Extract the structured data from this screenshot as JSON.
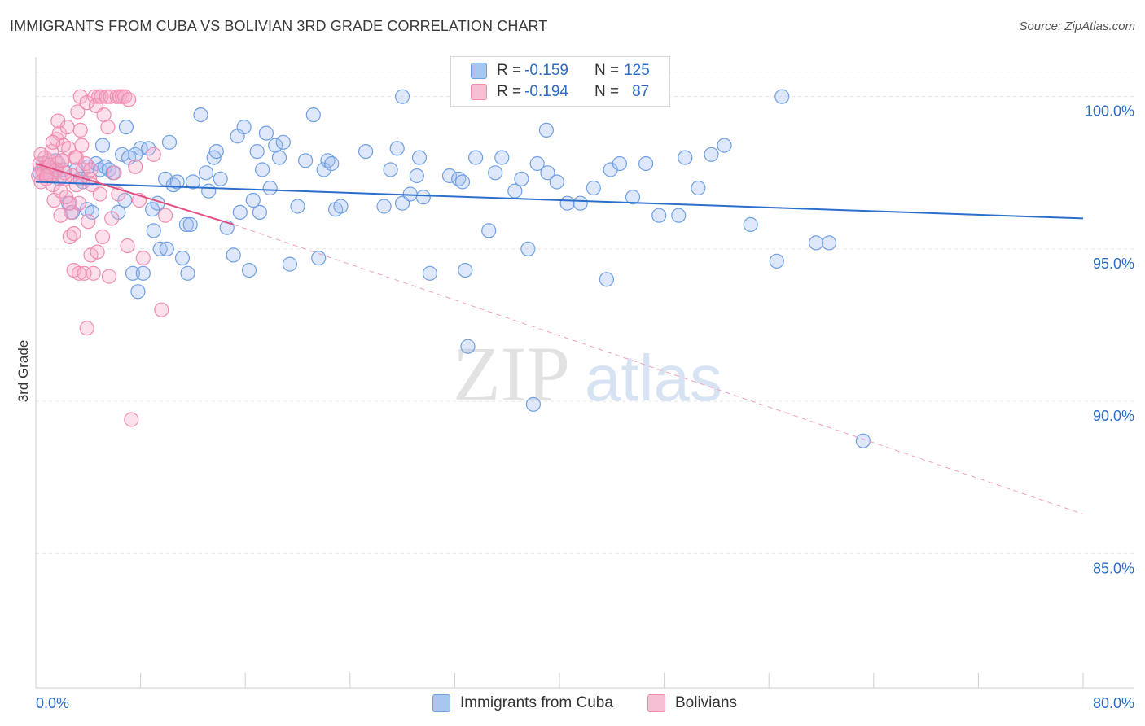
{
  "chart_data": {
    "type": "scatter",
    "title": "IMMIGRANTS FROM CUBA VS BOLIVIAN 3RD GRADE CORRELATION CHART",
    "source": "Source: ZipAtlas.com",
    "ylabel": "3rd Grade",
    "xlim": [
      0,
      80
    ],
    "ylim": [
      80.6,
      101.3
    ],
    "x_tick_labels": [
      "0.0%",
      "80.0%"
    ],
    "y_ticks": [
      85,
      90,
      95,
      100
    ],
    "y_tick_labels": [
      "85.0%",
      "90.0%",
      "95.0%",
      "100.0%"
    ],
    "watermark": {
      "zip": "ZIP",
      "atlas": "atlas"
    },
    "legend_stats": [
      {
        "r_label": "R = ",
        "r_value": "-0.159",
        "n_label": "N = ",
        "n_value": "125"
      },
      {
        "r_label": "R = ",
        "r_value": "-0.194",
        "n_label": "N = ",
        "n_value": "87"
      }
    ],
    "series": [
      {
        "name": "Immigrants from Cuba",
        "color": "#6f9fe3",
        "fill": "rgba(160,190,240,0.35)",
        "trend_color": "#2b6fcc",
        "trend": {
          "x1": 0,
          "y1": 97.2,
          "x2": 80,
          "y2": 96.0
        },
        "points": [
          [
            0.3,
            97.5
          ],
          [
            0.6,
            97.8
          ],
          [
            0.9,
            97.6
          ],
          [
            1.2,
            97.4
          ],
          [
            1.5,
            97.9
          ],
          [
            1.8,
            97.3
          ],
          [
            2.1,
            97.6
          ],
          [
            2.5,
            96.5
          ],
          [
            2.8,
            96.2
          ],
          [
            3.1,
            97.6
          ],
          [
            3.4,
            97.3
          ],
          [
            3.6,
            97.2
          ],
          [
            3.9,
            96.3
          ],
          [
            4.0,
            97.7
          ],
          [
            4.3,
            96.2
          ],
          [
            4.6,
            97.8
          ],
          [
            4.9,
            97.6
          ],
          [
            5.1,
            98.4
          ],
          [
            5.3,
            97.7
          ],
          [
            5.6,
            97.6
          ],
          [
            5.9,
            97.5
          ],
          [
            6.3,
            96.2
          ],
          [
            6.6,
            98.1
          ],
          [
            6.8,
            96.6
          ],
          [
            6.9,
            99.0
          ],
          [
            7.1,
            98.0
          ],
          [
            7.4,
            94.2
          ],
          [
            7.6,
            98.1
          ],
          [
            7.8,
            93.6
          ],
          [
            8.0,
            98.3
          ],
          [
            8.2,
            94.2
          ],
          [
            8.6,
            98.3
          ],
          [
            8.9,
            96.3
          ],
          [
            9.0,
            95.6
          ],
          [
            9.3,
            96.5
          ],
          [
            9.5,
            95.0
          ],
          [
            9.9,
            97.3
          ],
          [
            10.0,
            95.0
          ],
          [
            10.2,
            98.5
          ],
          [
            10.5,
            97.1
          ],
          [
            10.8,
            97.2
          ],
          [
            11.2,
            94.7
          ],
          [
            11.5,
            95.8
          ],
          [
            11.6,
            94.2
          ],
          [
            11.8,
            95.8
          ],
          [
            12.0,
            97.2
          ],
          [
            12.6,
            99.4
          ],
          [
            13.0,
            97.5
          ],
          [
            13.2,
            96.9
          ],
          [
            13.6,
            98.0
          ],
          [
            13.8,
            98.2
          ],
          [
            14.1,
            97.3
          ],
          [
            14.6,
            95.7
          ],
          [
            15.1,
            94.8
          ],
          [
            15.4,
            98.7
          ],
          [
            15.6,
            96.2
          ],
          [
            15.9,
            99.0
          ],
          [
            16.3,
            94.3
          ],
          [
            16.6,
            96.6
          ],
          [
            16.9,
            98.2
          ],
          [
            17.1,
            96.2
          ],
          [
            17.3,
            97.6
          ],
          [
            17.6,
            98.8
          ],
          [
            17.9,
            97.0
          ],
          [
            18.3,
            98.4
          ],
          [
            18.6,
            98.0
          ],
          [
            18.9,
            98.5
          ],
          [
            19.4,
            94.5
          ],
          [
            20.0,
            96.4
          ],
          [
            20.6,
            97.9
          ],
          [
            21.2,
            99.4
          ],
          [
            21.6,
            94.7
          ],
          [
            22.0,
            97.6
          ],
          [
            22.3,
            97.9
          ],
          [
            22.6,
            97.8
          ],
          [
            22.9,
            96.3
          ],
          [
            23.3,
            96.4
          ],
          [
            25.2,
            98.2
          ],
          [
            26.6,
            96.4
          ],
          [
            27.1,
            97.6
          ],
          [
            27.6,
            98.3
          ],
          [
            28.0,
            96.5
          ],
          [
            28.6,
            96.8
          ],
          [
            29.1,
            97.4
          ],
          [
            29.3,
            98.0
          ],
          [
            29.6,
            96.7
          ],
          [
            30.1,
            94.2
          ],
          [
            31.6,
            97.4
          ],
          [
            32.3,
            97.3
          ],
          [
            32.6,
            97.2
          ],
          [
            33.6,
            98.0
          ],
          [
            34.6,
            95.6
          ],
          [
            35.1,
            97.5
          ],
          [
            35.6,
            98.0
          ],
          [
            36.6,
            96.9
          ],
          [
            37.1,
            97.3
          ],
          [
            37.6,
            95.0
          ],
          [
            38.3,
            97.8
          ],
          [
            39.1,
            97.5
          ],
          [
            39.8,
            97.2
          ],
          [
            40.6,
            96.5
          ],
          [
            41.6,
            96.5
          ],
          [
            42.6,
            97.0
          ],
          [
            43.6,
            94.0
          ],
          [
            43.9,
            97.6
          ],
          [
            44.6,
            97.8
          ],
          [
            45.6,
            96.7
          ],
          [
            46.6,
            97.8
          ],
          [
            47.6,
            96.1
          ],
          [
            49.1,
            96.1
          ],
          [
            49.6,
            98.0
          ],
          [
            50.6,
            97.0
          ],
          [
            51.6,
            98.1
          ],
          [
            52.6,
            98.4
          ],
          [
            54.6,
            95.8
          ],
          [
            56.6,
            94.6
          ],
          [
            59.6,
            95.2
          ],
          [
            60.6,
            95.2
          ],
          [
            63.2,
            88.7
          ],
          [
            33.0,
            91.8
          ],
          [
            38.0,
            89.9
          ],
          [
            39.0,
            98.9
          ],
          [
            32.8,
            94.3
          ],
          [
            28.0,
            100.0
          ],
          [
            57.0,
            100.0
          ]
        ]
      },
      {
        "name": "Bolivians",
        "color": "#f08cb0",
        "fill": "rgba(245,170,200,0.35)",
        "trend_color": "#e0507f",
        "trend": {
          "x1": 0,
          "y1": 97.8,
          "x2": 15.1,
          "y2": 95.8
        },
        "trend_ext": {
          "x1": 15.1,
          "y1": 95.8,
          "x2": 80,
          "y2": 86.3
        },
        "points": [
          [
            0.2,
            97.4
          ],
          [
            0.3,
            97.8
          ],
          [
            0.4,
            97.2
          ],
          [
            0.5,
            97.6
          ],
          [
            0.6,
            97.5
          ],
          [
            0.7,
            98.0
          ],
          [
            0.8,
            97.3
          ],
          [
            0.9,
            97.7
          ],
          [
            1.0,
            97.9
          ],
          [
            1.1,
            97.4
          ],
          [
            1.2,
            98.2
          ],
          [
            1.3,
            97.1
          ],
          [
            1.4,
            96.6
          ],
          [
            1.5,
            97.6
          ],
          [
            1.6,
            98.6
          ],
          [
            1.7,
            97.8
          ],
          [
            1.8,
            98.8
          ],
          [
            1.9,
            96.9
          ],
          [
            2.0,
            97.9
          ],
          [
            2.1,
            98.4
          ],
          [
            2.2,
            97.3
          ],
          [
            2.3,
            96.7
          ],
          [
            2.4,
            99.0
          ],
          [
            2.5,
            98.3
          ],
          [
            2.6,
            95.4
          ],
          [
            2.7,
            96.2
          ],
          [
            2.8,
            97.4
          ],
          [
            2.9,
            94.3
          ],
          [
            3.0,
            98.0
          ],
          [
            3.1,
            98.0
          ],
          [
            3.2,
            99.5
          ],
          [
            3.3,
            96.5
          ],
          [
            3.4,
            98.9
          ],
          [
            3.5,
            98.4
          ],
          [
            3.6,
            97.6
          ],
          [
            3.8,
            97.8
          ],
          [
            4.0,
            95.9
          ],
          [
            4.1,
            97.3
          ],
          [
            4.2,
            94.8
          ],
          [
            4.3,
            97.1
          ],
          [
            4.5,
            100.0
          ],
          [
            4.6,
            99.7
          ],
          [
            4.8,
            100.0
          ],
          [
            5.0,
            100.0
          ],
          [
            5.2,
            99.4
          ],
          [
            5.4,
            100.0
          ],
          [
            5.5,
            99.0
          ],
          [
            5.7,
            100.0
          ],
          [
            5.8,
            96.0
          ],
          [
            6.0,
            97.5
          ],
          [
            6.2,
            100.0
          ],
          [
            6.4,
            100.0
          ],
          [
            6.6,
            100.0
          ],
          [
            6.8,
            100.0
          ],
          [
            7.0,
            95.1
          ],
          [
            7.1,
            99.9
          ],
          [
            7.3,
            89.4
          ],
          [
            7.6,
            97.7
          ],
          [
            7.9,
            96.6
          ],
          [
            8.2,
            94.7
          ],
          [
            9.0,
            98.1
          ],
          [
            9.6,
            93.0
          ],
          [
            9.9,
            96.1
          ],
          [
            2.9,
            95.5
          ],
          [
            3.3,
            94.2
          ],
          [
            3.9,
            92.4
          ],
          [
            4.4,
            94.2
          ],
          [
            3.7,
            94.2
          ],
          [
            4.7,
            94.9
          ],
          [
            5.1,
            95.4
          ],
          [
            1.6,
            97.6
          ],
          [
            2.2,
            97.5
          ],
          [
            1.0,
            97.7
          ],
          [
            0.4,
            98.1
          ],
          [
            2.6,
            96.5
          ],
          [
            1.9,
            96.1
          ],
          [
            4.9,
            96.8
          ],
          [
            5.6,
            94.1
          ],
          [
            3.1,
            97.1
          ],
          [
            1.3,
            98.5
          ],
          [
            6.3,
            96.8
          ],
          [
            0.8,
            97.4
          ],
          [
            2.0,
            97.9
          ],
          [
            1.7,
            99.2
          ],
          [
            4.2,
            97.6
          ],
          [
            3.4,
            100.0
          ],
          [
            3.9,
            99.8
          ]
        ]
      }
    ]
  }
}
